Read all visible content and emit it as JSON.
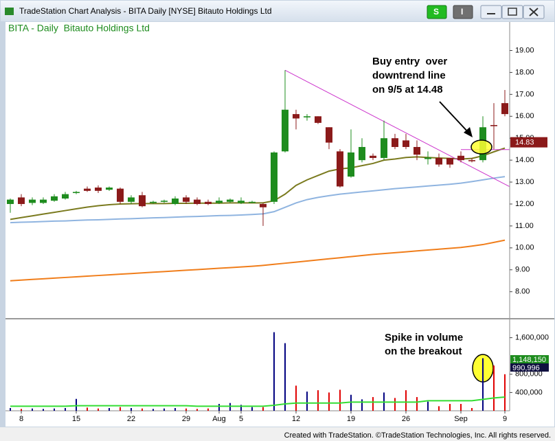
{
  "window": {
    "title": "TradeStation Chart Analysis - BITA Daily [NYSE] Bitauto Holdings Ltd",
    "buttons": [
      "S",
      "I"
    ]
  },
  "footer": "Created with TradeStation. ©TradeStation Technologies, Inc. All rights reserved.",
  "chart_data": [
    {
      "type": "candlestick",
      "title": "BITA - Daily  Bitauto Holdings Ltd",
      "open": [
        12.0,
        12.3,
        12.05,
        12.05,
        12.15,
        12.25,
        12.5,
        12.7,
        12.75,
        12.65,
        12.7,
        12.1,
        12.4,
        12.05,
        12.1,
        12.0,
        12.3,
        12.2,
        12.1,
        12.05,
        12.1,
        12.05,
        12.1,
        12.0,
        12.1,
        14.4,
        16.1,
        15.95,
        16.0,
        15.5,
        14.4,
        13.25,
        14.0,
        14.2,
        14.1,
        15.0,
        14.9,
        14.6,
        14.05,
        14.1,
        14.1,
        14.2,
        14.0,
        14.0,
        15.6,
        16.6
      ],
      "high": [
        12.25,
        12.45,
        12.3,
        12.3,
        12.45,
        12.55,
        12.6,
        12.8,
        12.85,
        12.8,
        12.75,
        12.4,
        12.55,
        12.15,
        12.2,
        12.35,
        12.4,
        12.3,
        12.2,
        12.3,
        12.25,
        12.3,
        12.15,
        12.05,
        14.4,
        18.1,
        16.3,
        16.1,
        16.0,
        15.5,
        14.5,
        15.4,
        15.0,
        14.3,
        15.8,
        15.2,
        15.2,
        14.9,
        14.4,
        14.3,
        14.1,
        14.4,
        14.1,
        16.0,
        16.6,
        17.2
      ],
      "low": [
        11.6,
        11.9,
        11.95,
        12.0,
        12.1,
        12.2,
        12.45,
        12.55,
        12.5,
        12.6,
        12.0,
        12.0,
        11.85,
        12.0,
        12.05,
        11.95,
        12.0,
        11.95,
        11.95,
        12.0,
        12.05,
        12.0,
        12.05,
        11.0,
        12.0,
        14.35,
        15.4,
        15.8,
        15.65,
        14.5,
        12.75,
        13.2,
        13.9,
        14.0,
        14.0,
        14.5,
        14.5,
        14.0,
        13.8,
        13.7,
        13.65,
        13.9,
        13.9,
        13.9,
        14.5,
        16.0
      ],
      "close": [
        12.2,
        12.0,
        12.2,
        12.2,
        12.35,
        12.45,
        12.55,
        12.6,
        12.6,
        12.75,
        12.1,
        12.3,
        11.9,
        12.1,
        12.15,
        12.25,
        12.1,
        12.0,
        12.0,
        12.15,
        12.2,
        12.15,
        12.1,
        11.85,
        14.35,
        16.3,
        15.9,
        16.0,
        15.7,
        14.8,
        12.8,
        14.35,
        14.6,
        14.1,
        15.0,
        14.6,
        14.6,
        14.25,
        14.12,
        13.8,
        13.8,
        14.0,
        13.95,
        15.5,
        15.55,
        16.1
      ],
      "up_color": "#1e8c1e",
      "down_color": "#8b1a1a",
      "overlays": [
        {
          "color": "#7a7a1e",
          "values": [
            11.3,
            11.38,
            11.46,
            11.54,
            11.62,
            11.7,
            11.78,
            11.86,
            11.92,
            11.97,
            12.0,
            12.01,
            12.02,
            12.02,
            12.02,
            12.03,
            12.03,
            12.04,
            12.04,
            12.04,
            12.05,
            12.05,
            12.05,
            12.05,
            12.15,
            12.45,
            12.85,
            13.1,
            13.3,
            13.5,
            13.6,
            13.65,
            13.75,
            13.85,
            14.0,
            14.05,
            14.12,
            14.15,
            14.12,
            14.1,
            14.08,
            14.05,
            14.08,
            14.2,
            14.38,
            14.55
          ]
        },
        {
          "color": "#8fb4e0",
          "values": [
            11.15,
            11.17,
            11.18,
            11.2,
            11.22,
            11.23,
            11.25,
            11.27,
            11.28,
            11.3,
            11.32,
            11.33,
            11.35,
            11.37,
            11.38,
            11.4,
            11.42,
            11.43,
            11.45,
            11.47,
            11.48,
            11.5,
            11.52,
            11.55,
            11.65,
            11.85,
            12.05,
            12.2,
            12.3,
            12.38,
            12.45,
            12.5,
            12.55,
            12.6,
            12.65,
            12.7,
            12.74,
            12.78,
            12.82,
            12.86,
            12.9,
            12.95,
            13.02,
            13.1,
            13.18,
            13.25
          ]
        },
        {
          "color": "#f07d1a",
          "values": [
            8.5,
            8.53,
            8.56,
            8.59,
            8.62,
            8.65,
            8.68,
            8.71,
            8.74,
            8.77,
            8.8,
            8.83,
            8.86,
            8.89,
            8.92,
            8.95,
            8.98,
            9.01,
            9.04,
            9.07,
            9.1,
            9.13,
            9.16,
            9.2,
            9.25,
            9.3,
            9.35,
            9.4,
            9.45,
            9.5,
            9.55,
            9.6,
            9.65,
            9.7,
            9.74,
            9.78,
            9.82,
            9.86,
            9.9,
            9.94,
            9.98,
            10.02,
            10.08,
            10.15,
            10.25,
            10.35
          ]
        }
      ],
      "trendline": {
        "color": "#cc33cc",
        "start_index": 25,
        "start_value": 18.1,
        "end_index": 45.4,
        "end_value": 12.8
      },
      "entry_line": {
        "color": "#cc33cc",
        "start_index": 41,
        "end_index": 45.4,
        "value": 14.48
      },
      "price_box": {
        "value": 14.83,
        "color": "#8b1a1a"
      },
      "annotations": [
        {
          "lines": [
            "Buy entry  over",
            "downtrend line",
            "on 9/5 at 14.48"
          ]
        }
      ],
      "ylim": [
        6.8,
        20.3
      ],
      "yticks": [
        {
          "value": 8,
          "label": "8.00"
        },
        {
          "value": 9,
          "label": "9.00"
        },
        {
          "value": 10,
          "label": "10.00"
        },
        {
          "value": 11,
          "label": "11.00"
        },
        {
          "value": 12,
          "label": "12.00"
        },
        {
          "value": 13,
          "label": "13.00"
        },
        {
          "value": 14,
          "label": "14.00"
        },
        {
          "value": 15,
          "label": "15.00"
        },
        {
          "value": 16,
          "label": "16.00"
        },
        {
          "value": 17,
          "label": "17.00"
        },
        {
          "value": 18,
          "label": "18.00"
        },
        {
          "value": 19,
          "label": "19.00"
        }
      ]
    },
    {
      "type": "bar",
      "categories": [
        null,
        "8",
        null,
        null,
        null,
        null,
        "15",
        null,
        null,
        null,
        null,
        "22",
        null,
        null,
        null,
        null,
        "29",
        null,
        null,
        "Aug",
        null,
        "5",
        null,
        null,
        null,
        null,
        "12",
        null,
        null,
        null,
        null,
        "19",
        null,
        null,
        null,
        null,
        "26",
        null,
        null,
        null,
        null,
        "Sep",
        null,
        null,
        null,
        "9"
      ],
      "values": [
        60000,
        40000,
        50000,
        40000,
        50000,
        60000,
        260000,
        70000,
        50000,
        60000,
        80000,
        60000,
        50000,
        40000,
        50000,
        60000,
        50000,
        40000,
        50000,
        150000,
        170000,
        130000,
        80000,
        80000,
        1720000,
        1480000,
        550000,
        420000,
        450000,
        400000,
        460000,
        350000,
        250000,
        300000,
        400000,
        280000,
        450000,
        300000,
        200000,
        100000,
        150000,
        150000,
        60000,
        1150000,
        990000,
        800000
      ],
      "up_color": "#000080",
      "down_color": "#e00000",
      "overlays": [
        {
          "color": "#33dd33",
          "values": [
            100000,
            100000,
            100000,
            100000,
            100000,
            100000,
            110000,
            110000,
            110000,
            110000,
            110000,
            110000,
            110000,
            110000,
            110000,
            110000,
            110000,
            100000,
            100000,
            100000,
            100000,
            100000,
            100000,
            100000,
            120000,
            150000,
            170000,
            170000,
            170000,
            170000,
            170000,
            190000,
            190000,
            190000,
            190000,
            190000,
            190000,
            190000,
            220000,
            220000,
            220000,
            220000,
            220000,
            250000,
            280000,
            300000
          ]
        }
      ],
      "value_boxes": [
        {
          "value": 1148150,
          "label": "1,148,150",
          "color": "#1e8c1e"
        },
        {
          "value": 990996,
          "label": "990,996",
          "color": "#101040"
        }
      ],
      "annotations": [
        {
          "lines": [
            "Spike in volume",
            "on the breakout"
          ]
        }
      ],
      "ylim": [
        0,
        2000000
      ],
      "yticks": [
        {
          "value": 400000,
          "label": "400,000"
        },
        {
          "value": 800000,
          "label": "800,000"
        },
        {
          "value": 1600000,
          "label": "1,600,000"
        }
      ]
    }
  ]
}
